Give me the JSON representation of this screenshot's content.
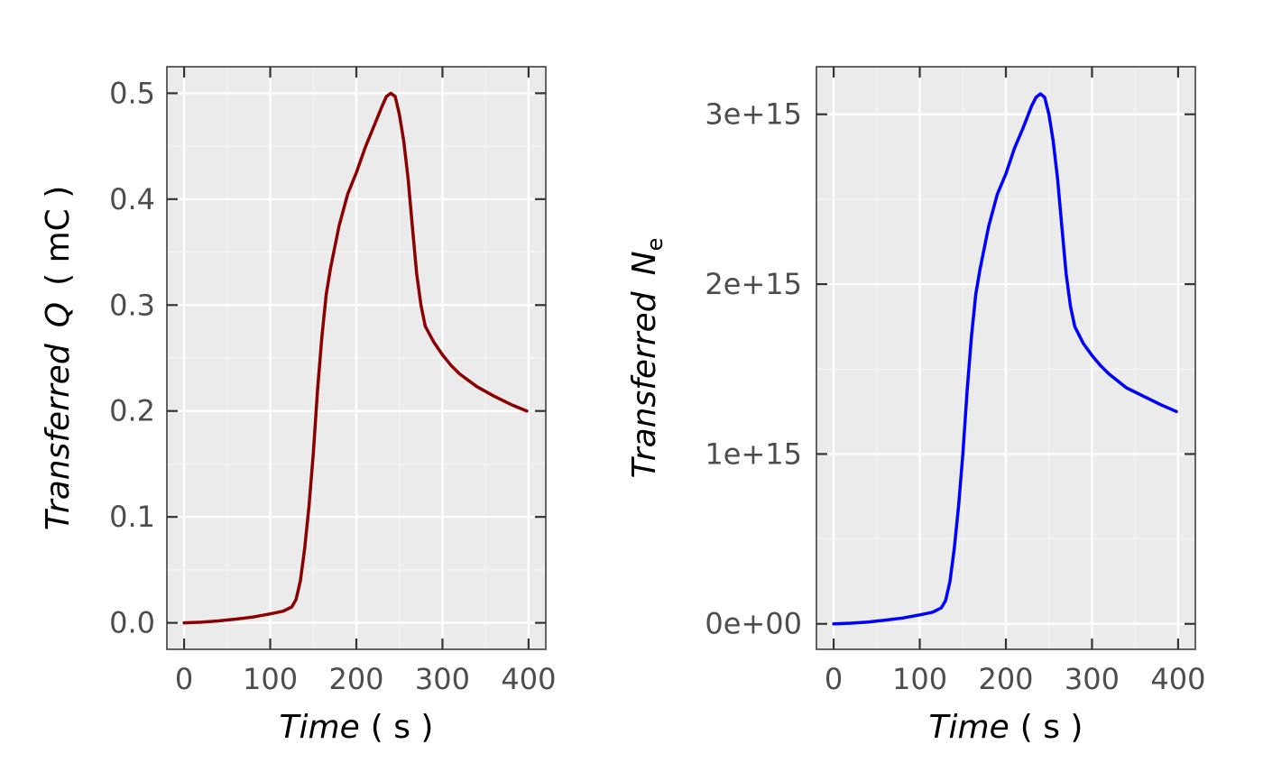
{
  "colors": {
    "panel_background": "#ebebeb",
    "grid_major": "#ffffff",
    "grid_minor": "#f5f5f5",
    "frame": "#333333",
    "tick_label": "#4d4d4d"
  },
  "chart_data": [
    {
      "type": "line",
      "xlabel": {
        "main": "Time",
        "unit": "( s )"
      },
      "ylabel": {
        "prefix": "Transferred",
        "symbol": "Q",
        "unit": "( mC )"
      },
      "xlim": [
        -20,
        420
      ],
      "ylim": [
        -0.025,
        0.525
      ],
      "x_ticks": [
        0,
        100,
        200,
        300,
        400
      ],
      "x_tick_labels": [
        "0",
        "100",
        "200",
        "300",
        "400"
      ],
      "y_ticks": [
        0,
        0.1,
        0.2,
        0.3,
        0.4,
        0.5
      ],
      "y_tick_labels": [
        "0.0",
        "0.1",
        "0.2",
        "0.3",
        "0.4",
        "0.5"
      ],
      "grid": true,
      "series": [
        {
          "color": "#8b0000",
          "x": [
            0,
            20,
            40,
            60,
            80,
            100,
            115,
            125,
            130,
            135,
            140,
            145,
            150,
            155,
            160,
            165,
            170,
            180,
            190,
            200,
            210,
            220,
            230,
            235,
            240,
            245,
            250,
            255,
            260,
            265,
            270,
            275,
            280,
            290,
            300,
            310,
            320,
            340,
            360,
            380,
            398
          ],
          "values": [
            0,
            0.0006,
            0.0018,
            0.0035,
            0.0055,
            0.0085,
            0.011,
            0.015,
            0.022,
            0.04,
            0.07,
            0.11,
            0.16,
            0.22,
            0.27,
            0.31,
            0.335,
            0.375,
            0.405,
            0.425,
            0.448,
            0.468,
            0.488,
            0.497,
            0.5,
            0.497,
            0.48,
            0.455,
            0.42,
            0.375,
            0.33,
            0.3,
            0.28,
            0.265,
            0.253,
            0.243,
            0.235,
            0.223,
            0.214,
            0.206,
            0.2
          ]
        }
      ]
    },
    {
      "type": "line",
      "xlabel": {
        "main": "Time",
        "unit": "( s )"
      },
      "ylabel": {
        "prefix": "Transferred",
        "symbol": "N",
        "subscript": "e"
      },
      "xlim": [
        -20,
        420
      ],
      "ylim": [
        -150000000000000.0,
        3280000000000000.0
      ],
      "x_ticks": [
        0,
        100,
        200,
        300,
        400
      ],
      "x_tick_labels": [
        "0",
        "100",
        "200",
        "300",
        "400"
      ],
      "y_ticks": [
        0,
        1000000000000000.0,
        2000000000000000.0,
        3000000000000000.0
      ],
      "y_tick_labels": [
        "0e+00",
        "1e+15",
        "2e+15",
        "3e+15"
      ],
      "grid": true,
      "series": [
        {
          "color": "#0000ff",
          "x": [
            0,
            20,
            40,
            60,
            80,
            100,
            115,
            125,
            130,
            135,
            140,
            145,
            150,
            155,
            160,
            165,
            170,
            180,
            190,
            200,
            210,
            220,
            230,
            235,
            240,
            245,
            250,
            255,
            260,
            265,
            270,
            275,
            280,
            290,
            300,
            310,
            320,
            340,
            360,
            380,
            398
          ],
          "values": [
            0,
            3800000000000.0,
            11000000000000.0,
            22000000000000.0,
            34000000000000.0,
            53000000000000.0,
            69000000000000.0,
            94000000000000.0,
            137000000000000.0,
            250000000000000.0,
            440000000000000.0,
            690000000000000.0,
            1000000000000000.0,
            1370000000000000.0,
            1690000000000000.0,
            1940000000000000.0,
            2090000000000000.0,
            2340000000000000.0,
            2530000000000000.0,
            2650000000000000.0,
            2800000000000000.0,
            2920000000000000.0,
            3050000000000000.0,
            3100000000000000.0,
            3120000000000000.0,
            3100000000000000.0,
            3000000000000000.0,
            2840000000000000.0,
            2620000000000000.0,
            2340000000000000.0,
            2060000000000000.0,
            1870000000000000.0,
            1750000000000000.0,
            1650000000000000.0,
            1580000000000000.0,
            1520000000000000.0,
            1470000000000000.0,
            1390000000000000.0,
            1340000000000000.0,
            1290000000000000.0,
            1250000000000000.0
          ]
        }
      ]
    }
  ]
}
